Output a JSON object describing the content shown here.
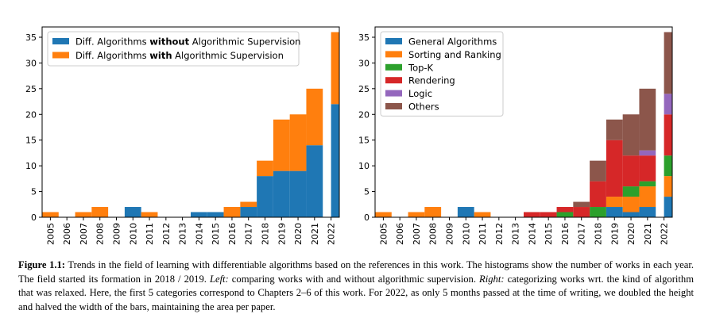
{
  "chart_data": [
    {
      "type": "bar",
      "stacked": true,
      "x": [
        2005,
        2006,
        2007,
        2008,
        2009,
        2010,
        2011,
        2012,
        2013,
        2014,
        2015,
        2016,
        2017,
        2018,
        2019,
        2020,
        2021,
        2022
      ],
      "xlim": [
        2005,
        2022
      ],
      "ylim": [
        0,
        37
      ],
      "yticks": [
        0,
        5,
        10,
        15,
        20,
        25,
        30,
        35
      ],
      "legend_position": "top-left",
      "series": [
        {
          "name_parts": [
            "Diff. Algorithms ",
            "without",
            " Algorithmic Supervision"
          ],
          "color": "#1f77b4",
          "values": [
            0,
            0,
            0,
            0,
            0,
            2,
            0,
            0,
            0,
            1,
            1,
            0,
            2,
            8,
            9,
            9,
            14,
            22
          ]
        },
        {
          "name_parts": [
            "Diff. Algorithms ",
            "with",
            " Algorithmic Supervision"
          ],
          "color": "#ff7f0e",
          "values": [
            1,
            0,
            1,
            2,
            0,
            0,
            1,
            0,
            0,
            0,
            0,
            2,
            1,
            3,
            10,
            11,
            11,
            14
          ]
        }
      ]
    },
    {
      "type": "bar",
      "stacked": true,
      "x": [
        2005,
        2006,
        2007,
        2008,
        2009,
        2010,
        2011,
        2012,
        2013,
        2014,
        2015,
        2016,
        2017,
        2018,
        2019,
        2020,
        2021,
        2022
      ],
      "xlim": [
        2005,
        2022
      ],
      "ylim": [
        0,
        37
      ],
      "yticks": [
        0,
        5,
        10,
        15,
        20,
        25,
        30,
        35
      ],
      "legend_position": "top-left",
      "series": [
        {
          "name": "General Algorithms",
          "color": "#1f77b4",
          "values": [
            0,
            0,
            0,
            0,
            0,
            2,
            0,
            0,
            0,
            0,
            0,
            0,
            0,
            0,
            2,
            1,
            2,
            4
          ]
        },
        {
          "name": "Sorting and Ranking",
          "color": "#ff7f0e",
          "values": [
            1,
            0,
            1,
            2,
            0,
            0,
            1,
            0,
            0,
            0,
            0,
            0,
            0,
            0,
            2,
            3,
            4,
            4
          ]
        },
        {
          "name": "Top-K",
          "color": "#2ca02c",
          "values": [
            0,
            0,
            0,
            0,
            0,
            0,
            0,
            0,
            0,
            0,
            0,
            1,
            0,
            2,
            0,
            2,
            1,
            4
          ]
        },
        {
          "name": "Rendering",
          "color": "#d62728",
          "values": [
            0,
            0,
            0,
            0,
            0,
            0,
            0,
            0,
            0,
            1,
            1,
            1,
            2,
            5,
            11,
            6,
            5,
            8
          ]
        },
        {
          "name": "Logic",
          "color": "#9467bd",
          "values": [
            0,
            0,
            0,
            0,
            0,
            0,
            0,
            0,
            0,
            0,
            0,
            0,
            0,
            0,
            0,
            0,
            1,
            4
          ]
        },
        {
          "name": "Others",
          "color": "#8c564b",
          "values": [
            0,
            0,
            0,
            0,
            0,
            0,
            0,
            0,
            0,
            0,
            0,
            0,
            1,
            4,
            4,
            8,
            12,
            12
          ]
        }
      ]
    }
  ],
  "caption": {
    "label": "Figure 1.1:",
    "part1": " Trends in the field of learning with differentiable algorithms based on the references in this work. The histograms show the number of works in each year. The field started its formation in 2018 / 2019. ",
    "left_label": "Left:",
    "part2": " comparing works with and without algorithmic supervision. ",
    "right_label": "Right:",
    "part3": " categorizing works wrt. the kind of algorithm that was relaxed. Here, the first 5 categories correspond to Chapters 2–6 of this work. For 2022, as only 5 months passed at the time of writing, we doubled the height and halved the width of the bars, maintaining the area per paper."
  }
}
